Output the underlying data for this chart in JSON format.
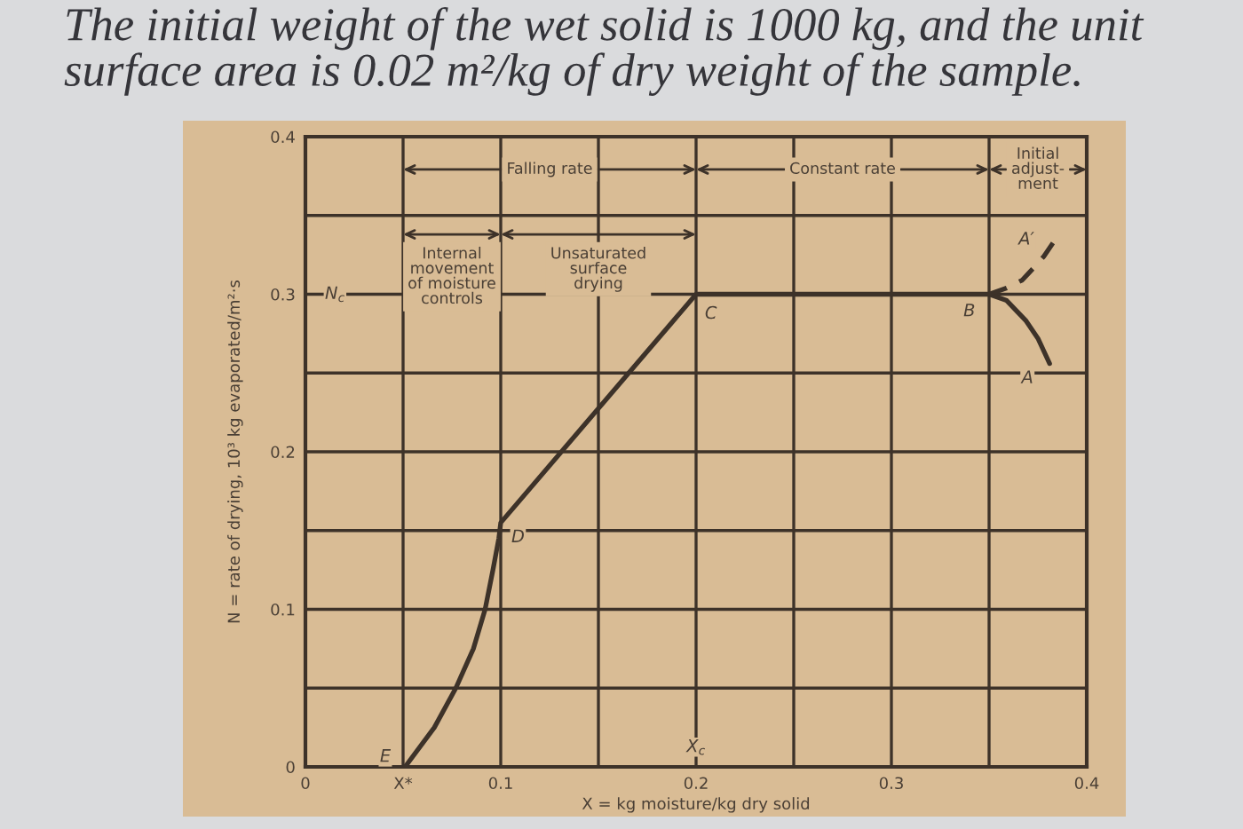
{
  "chart_data": {
    "type": "line",
    "title": "The initial weight of the wet solid is 1000 kg, and the unit surface area is 0.02 m²/kg of dry weight of the sample.",
    "xlabel": "X = kg moisture/kg dry solid",
    "ylabel": "N = rate of drying, 10³ kg evaporated/m²·s",
    "xlim": [
      0,
      0.4
    ],
    "ylim": [
      0,
      0.4
    ],
    "xticks": [
      0,
      {
        "value": 0.05,
        "label": "X*"
      },
      0.1,
      {
        "value": 0.15,
        "label": null
      },
      0.2,
      {
        "value": 0.25,
        "label": null
      },
      0.3,
      {
        "value": 0.35,
        "label": null
      },
      0.4
    ],
    "yticks": [
      0,
      {
        "value": 0.05,
        "label": null
      },
      0.1,
      {
        "value": 0.15,
        "label": null
      },
      0.2,
      {
        "value": 0.25,
        "label": null
      },
      0.3,
      {
        "value": 0.35,
        "label": null
      },
      0.4
    ],
    "grid": true,
    "series": [
      {
        "color": "#3d3229",
        "line_style": "solid",
        "x": [
          0.051,
          0.066,
          0.077,
          0.086,
          0.092,
          0.096,
          0.099,
          0.1,
          0.2,
          0.35,
          0.359,
          0.369,
          0.375,
          0.381
        ],
        "values": [
          0,
          0.025,
          0.05,
          0.075,
          0.1,
          0.125,
          0.145,
          0.155,
          0.3,
          0.3,
          0.296,
          0.283,
          0.272,
          0.256
        ]
      },
      {
        "color": "#3d3229",
        "line_style": "dashed",
        "x": [
          0.35,
          0.359,
          0.367,
          0.373,
          0.378,
          0.383
        ],
        "values": [
          0.3,
          0.304,
          0.309,
          0.317,
          0.324,
          0.333
        ]
      }
    ],
    "annotations": [
      {
        "text": "E",
        "x": 0.051,
        "y": 0
      },
      {
        "text": "D",
        "x": 0.1,
        "y": 0.155
      },
      {
        "text": "C",
        "x": 0.2,
        "y": 0.3
      },
      {
        "text": "B",
        "x": 0.35,
        "y": 0.3
      },
      {
        "text": "A",
        "x": 0.381,
        "y": 0.256
      },
      {
        "text": "A′",
        "x": 0.383,
        "y": 0.333
      },
      "X$_{c}$",
      "N$_{c}$",
      "Falling rate",
      "Constant rate",
      "Initial\nadjust-\nment",
      "Internal\nmovement\nof moisture\ncontrols",
      "Unsaturated\nsurface\ndrying"
    ]
  }
}
